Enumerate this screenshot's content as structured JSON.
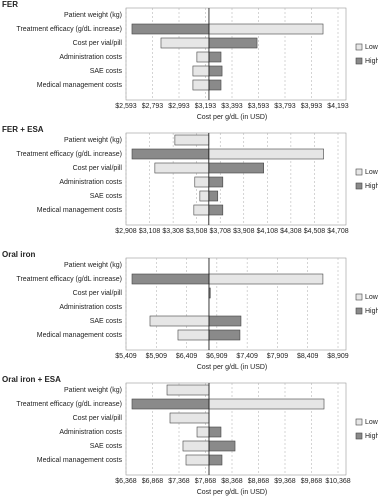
{
  "chart_data": [
    {
      "type": "tornado",
      "title": "FER",
      "xlabel": "Cost per g/dL (in USD)",
      "categories": [
        "Patient weight (kg)",
        "Treatment efficacy (g/dL increase)",
        "Cost per vial/pill",
        "Administration costs",
        "SAE costs",
        "Medical management costs"
      ],
      "base": 3219,
      "series": [
        {
          "name": "Low",
          "color": "#e6e6e6",
          "values": [
            3219,
            4080,
            2857,
            3128,
            3098,
            3098
          ]
        },
        {
          "name": "High",
          "color": "#8a8a8a",
          "values": [
            3219,
            2638,
            3582,
            3310,
            3318,
            3310
          ]
        }
      ],
      "xlim": [
        2593,
        4193
      ],
      "xticks": [
        {
          "value": 2593,
          "label": "$2,593"
        },
        {
          "value": 2793,
          "label": "$2,793"
        },
        {
          "value": 2993,
          "label": "$2,993"
        },
        {
          "value": 3193,
          "label": "$3,193"
        },
        {
          "value": 3393,
          "label": "$3,393"
        },
        {
          "value": 3593,
          "label": "$3,593"
        },
        {
          "value": 3793,
          "label": "$3,793"
        },
        {
          "value": 3993,
          "label": "$3,993"
        },
        {
          "value": 4193,
          "label": "$4,193"
        }
      ],
      "grid": true,
      "legend": "right"
    },
    {
      "type": "tornado",
      "title": "FER + ESA",
      "categories": [
        "Patient weight (kg)",
        "Treatment efficacy (g/dL increase)",
        "Cost per vial/pill",
        "Administration costs",
        "SAE costs",
        "Medical management costs"
      ],
      "base": 3611,
      "series": [
        {
          "name": "Low",
          "color": "#e6e6e6",
          "values": [
            3323,
            4586,
            3153,
            3492,
            3535,
            3484
          ]
        },
        {
          "name": "High",
          "color": "#8a8a8a",
          "values": [
            3611,
            2959,
            4077,
            3730,
            3687,
            3730
          ]
        }
      ],
      "xlim": [
        2908,
        4708
      ],
      "xticks": [
        {
          "value": 2908,
          "label": "$2,908"
        },
        {
          "value": 3108,
          "label": "$3,108"
        },
        {
          "value": 3308,
          "label": "$3,308"
        },
        {
          "value": 3508,
          "label": "$3,508"
        },
        {
          "value": 3708,
          "label": "$3,708"
        },
        {
          "value": 3908,
          "label": "$3,908"
        },
        {
          "value": 4108,
          "label": "$4,108"
        },
        {
          "value": 4308,
          "label": "$4,308"
        },
        {
          "value": 4508,
          "label": "$4,508"
        },
        {
          "value": 4708,
          "label": "$4,708"
        }
      ],
      "grid": true,
      "legend": "right"
    },
    {
      "type": "tornado",
      "title": "Oral iron",
      "xlabel": "Cost per g/dL (in USD)",
      "categories": [
        "Patient weight (kg)",
        "Treatment efficacy (g/dL increase)",
        "Cost per vial/pill",
        "Administration costs",
        "SAE costs",
        "Medical management costs"
      ],
      "base": 6779,
      "series": [
        {
          "name": "Low",
          "color": "#e6e6e6",
          "values": [
            6779,
            8660,
            6779,
            6779,
            5805,
            6267
          ]
        },
        {
          "name": "High",
          "color": "#8a8a8a",
          "values": [
            6779,
            5508,
            6800,
            6779,
            7307,
            7290
          ]
        }
      ],
      "xlim": [
        5409,
        8909
      ],
      "xticks": [
        {
          "value": 5409,
          "label": "$5,409"
        },
        {
          "value": 5909,
          "label": "$5,909"
        },
        {
          "value": 6409,
          "label": "$6,409"
        },
        {
          "value": 6909,
          "label": "$6,909"
        },
        {
          "value": 7409,
          "label": "$7,409"
        },
        {
          "value": 7909,
          "label": "$7,909"
        },
        {
          "value": 8409,
          "label": "$8,409"
        },
        {
          "value": 8909,
          "label": "$8,909"
        }
      ],
      "grid": true,
      "legend": "right"
    },
    {
      "type": "tornado",
      "title": "Oral iron + ESA",
      "xlabel": "Cost per g/dL (in USD)",
      "categories": [
        "Patient weight (kg)",
        "Treatment efficacy (g/dL increase)",
        "Cost per vial/pill",
        "Administration costs",
        "SAE costs",
        "Medical management costs"
      ],
      "base": 7934,
      "series": [
        {
          "name": "Low",
          "color": "#e6e6e6",
          "values": [
            7142,
            10104,
            7198,
            7708,
            7443,
            7500
          ]
        },
        {
          "name": "High",
          "color": "#8a8a8a",
          "values": [
            7934,
            6481,
            7934,
            8160,
            8425,
            8179
          ]
        }
      ],
      "xlim": [
        6368,
        10368
      ],
      "xticks": [
        {
          "value": 6368,
          "label": "$6,368"
        },
        {
          "value": 6868,
          "label": "$6,868"
        },
        {
          "value": 7368,
          "label": "$7,368"
        },
        {
          "value": 7868,
          "label": "$7,868"
        },
        {
          "value": 8368,
          "label": "$8,368"
        },
        {
          "value": 8868,
          "label": "$8,868"
        },
        {
          "value": 9368,
          "label": "$9,368"
        },
        {
          "value": 9868,
          "label": "$9,868"
        },
        {
          "value": 10368,
          "label": "$10,368"
        }
      ],
      "grid": true,
      "legend": "right"
    }
  ]
}
